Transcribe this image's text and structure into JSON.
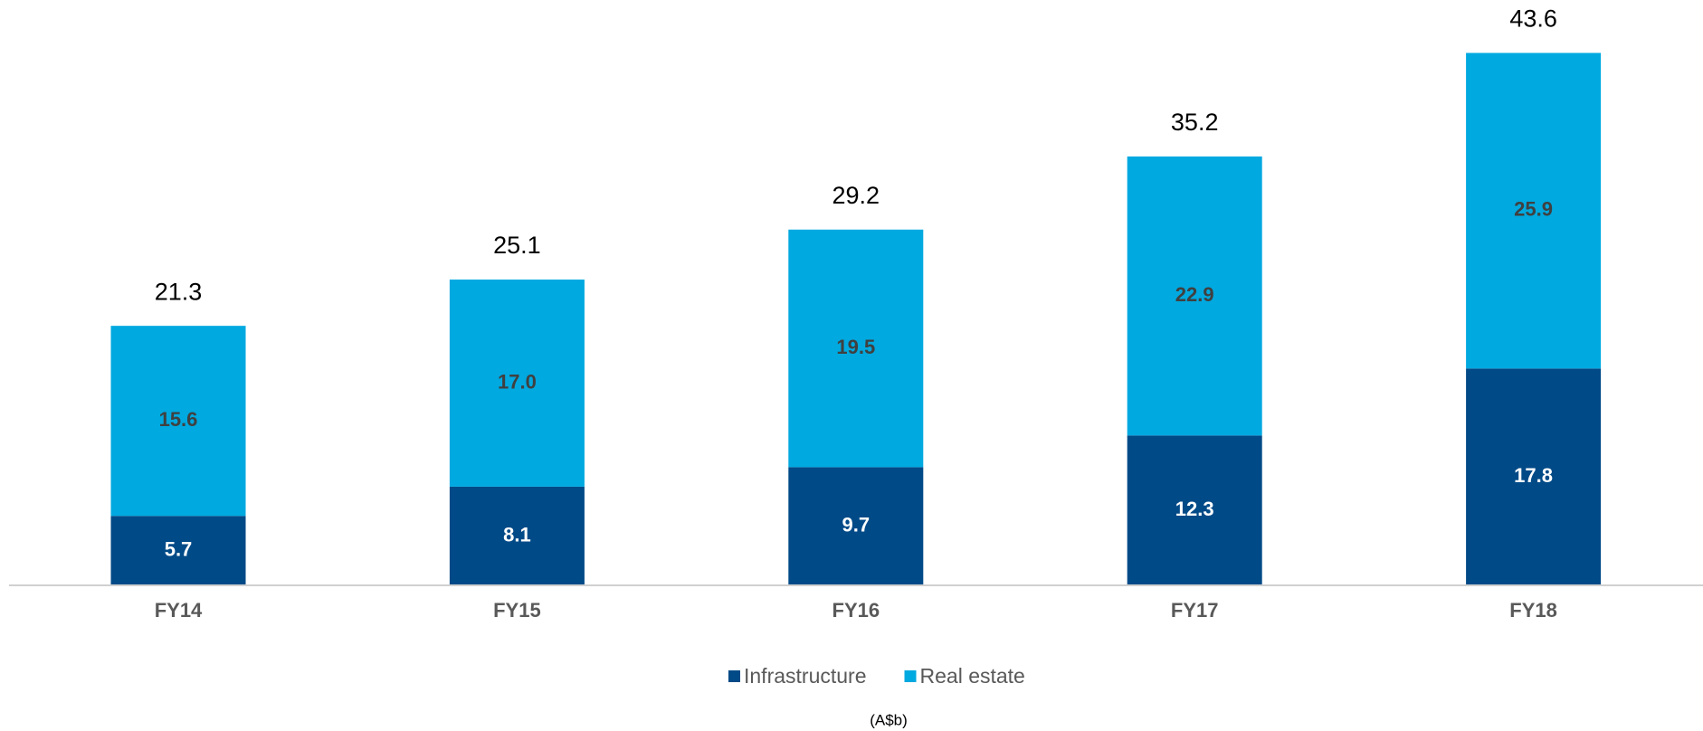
{
  "chart_data": {
    "type": "stacked_bar",
    "categories": [
      "FY14",
      "FY15",
      "FY16",
      "FY17",
      "FY18"
    ],
    "series": [
      {
        "name": "Infrastructure",
        "color": "#004a87",
        "values": [
          5.7,
          8.1,
          9.7,
          12.3,
          17.8
        ]
      },
      {
        "name": "Real estate",
        "color": "#00a9e0",
        "values": [
          15.6,
          17.0,
          19.5,
          22.9,
          25.9
        ],
        "value_labels": [
          "15.6",
          "17.0",
          "19.5",
          "22.9",
          "25.9"
        ]
      }
    ],
    "totals": [
      21.3,
      25.1,
      29.2,
      35.2,
      43.6
    ],
    "ylim": [
      0,
      45
    ],
    "legend": "bottom",
    "note": "(A$b)"
  }
}
